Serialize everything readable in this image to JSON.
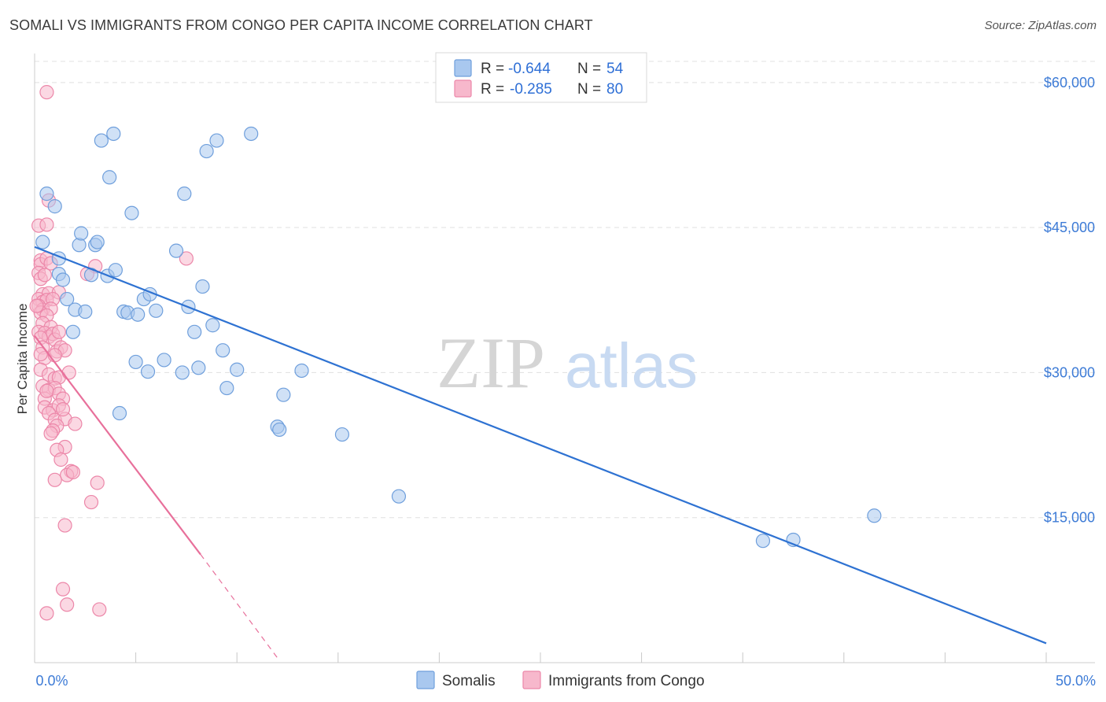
{
  "title": "SOMALI VS IMMIGRANTS FROM CONGO PER CAPITA INCOME CORRELATION CHART",
  "source": "Source: ZipAtlas.com",
  "watermark": {
    "zip": "ZIP",
    "atlas": "atlas"
  },
  "colors": {
    "blue_fill": "#a9c8ef",
    "blue_stroke": "#6f9fdc",
    "blue_line": "#2e72d2",
    "pink_fill": "#f7b8cc",
    "pink_stroke": "#ec87a9",
    "pink_line": "#e8709b",
    "grid": "#e0e0e0",
    "tick_label": "#3d7bd6"
  },
  "legend": {
    "rows": [
      {
        "r_label": "R =",
        "r_value": "-0.644",
        "n_label": "N =",
        "n_value": "54",
        "series": "blue"
      },
      {
        "r_label": "R =",
        "r_value": "-0.285",
        "n_label": "N =",
        "n_value": "80",
        "series": "pink"
      }
    ]
  },
  "bottom_legend": [
    {
      "label": "Somalis",
      "series": "blue"
    },
    {
      "label": "Immigrants from Congo",
      "series": "pink"
    }
  ],
  "chart_data": {
    "type": "scatter",
    "title": "SOMALI VS IMMIGRANTS FROM CONGO PER CAPITA INCOME CORRELATION CHART",
    "xlabel": "",
    "ylabel": "Per Capita Income",
    "xlim": [
      0,
      50
    ],
    "ylim": [
      0,
      63000
    ],
    "x_tick_labels": [
      {
        "value": 0,
        "label": "0.0%"
      },
      {
        "value": 50,
        "label": "50.0%"
      }
    ],
    "y_ticks": [
      {
        "value": 15000,
        "label": "$15,000"
      },
      {
        "value": 30000,
        "label": "$30,000"
      },
      {
        "value": 45000,
        "label": "$45,000"
      },
      {
        "value": 60000,
        "label": "$60,000"
      }
    ],
    "series": [
      {
        "name": "Somalis",
        "color": "blue",
        "r": -0.644,
        "n": 54,
        "trend": {
          "x0": 0,
          "y0": 43000,
          "x1": 50,
          "y1": 2000
        },
        "points": [
          [
            0.4,
            43500
          ],
          [
            0.6,
            48500
          ],
          [
            1.0,
            47200
          ],
          [
            1.2,
            41800
          ],
          [
            1.2,
            40200
          ],
          [
            1.6,
            37600
          ],
          [
            1.9,
            34200
          ],
          [
            2.0,
            36500
          ],
          [
            2.2,
            43200
          ],
          [
            2.3,
            44400
          ],
          [
            2.5,
            36300
          ],
          [
            2.8,
            40100
          ],
          [
            3.0,
            43200
          ],
          [
            3.1,
            43500
          ],
          [
            3.3,
            54000
          ],
          [
            3.6,
            40000
          ],
          [
            3.7,
            50200
          ],
          [
            3.9,
            54700
          ],
          [
            4.0,
            40600
          ],
          [
            4.2,
            25800
          ],
          [
            4.4,
            36300
          ],
          [
            4.6,
            36200
          ],
          [
            4.8,
            46500
          ],
          [
            5.0,
            31100
          ],
          [
            5.1,
            36000
          ],
          [
            5.4,
            37600
          ],
          [
            5.6,
            30100
          ],
          [
            5.7,
            38100
          ],
          [
            6.0,
            36400
          ],
          [
            6.4,
            31300
          ],
          [
            7.0,
            42600
          ],
          [
            7.3,
            30000
          ],
          [
            7.4,
            48500
          ],
          [
            7.6,
            36800
          ],
          [
            7.9,
            34200
          ],
          [
            8.1,
            30500
          ],
          [
            8.3,
            38900
          ],
          [
            8.5,
            52900
          ],
          [
            8.8,
            34900
          ],
          [
            9.0,
            54000
          ],
          [
            9.3,
            32300
          ],
          [
            9.5,
            28400
          ],
          [
            10.0,
            30300
          ],
          [
            10.7,
            54700
          ],
          [
            12.0,
            24400
          ],
          [
            12.1,
            24100
          ],
          [
            12.3,
            27700
          ],
          [
            13.2,
            30200
          ],
          [
            15.2,
            23600
          ],
          [
            18.0,
            17200
          ],
          [
            36.0,
            12600
          ],
          [
            37.5,
            12700
          ],
          [
            41.5,
            15200
          ],
          [
            1.4,
            39600
          ]
        ]
      },
      {
        "name": "Immigrants from Congo",
        "color": "pink",
        "r": -0.285,
        "n": 80,
        "trend": {
          "x0": 0,
          "y0": 33800,
          "x1": 8.2,
          "y1": 11200,
          "dash_x1": 12.0,
          "dash_y1": 500
        },
        "points": [
          [
            0.6,
            59000
          ],
          [
            0.7,
            47800
          ],
          [
            0.2,
            45200
          ],
          [
            0.6,
            45300
          ],
          [
            0.3,
            41600
          ],
          [
            0.3,
            41200
          ],
          [
            0.6,
            41800
          ],
          [
            0.8,
            41300
          ],
          [
            0.2,
            40300
          ],
          [
            0.3,
            39700
          ],
          [
            0.5,
            40100
          ],
          [
            0.4,
            38100
          ],
          [
            0.7,
            38200
          ],
          [
            1.2,
            38300
          ],
          [
            0.2,
            37600
          ],
          [
            0.4,
            37300
          ],
          [
            0.6,
            37500
          ],
          [
            0.9,
            37600
          ],
          [
            0.2,
            36900
          ],
          [
            0.4,
            36500
          ],
          [
            0.8,
            36600
          ],
          [
            0.3,
            36200
          ],
          [
            0.6,
            35900
          ],
          [
            0.4,
            35100
          ],
          [
            0.8,
            34700
          ],
          [
            0.2,
            34200
          ],
          [
            0.5,
            34100
          ],
          [
            0.7,
            33700
          ],
          [
            0.9,
            34000
          ],
          [
            0.3,
            33600
          ],
          [
            1.0,
            33400
          ],
          [
            0.4,
            32600
          ],
          [
            1.1,
            32200
          ],
          [
            1.3,
            32600
          ],
          [
            1.5,
            32300
          ],
          [
            0.5,
            31500
          ],
          [
            1.0,
            31800
          ],
          [
            0.3,
            30300
          ],
          [
            0.7,
            29800
          ],
          [
            1.0,
            29400
          ],
          [
            1.2,
            29500
          ],
          [
            0.4,
            28600
          ],
          [
            0.7,
            28200
          ],
          [
            1.0,
            28400
          ],
          [
            1.2,
            27800
          ],
          [
            0.5,
            27300
          ],
          [
            1.4,
            27300
          ],
          [
            0.5,
            26400
          ],
          [
            0.9,
            26100
          ],
          [
            1.2,
            26600
          ],
          [
            0.7,
            25800
          ],
          [
            1.0,
            25100
          ],
          [
            1.5,
            25200
          ],
          [
            1.1,
            24500
          ],
          [
            0.9,
            24000
          ],
          [
            1.5,
            22300
          ],
          [
            1.1,
            22000
          ],
          [
            1.3,
            21000
          ],
          [
            1.8,
            19800
          ],
          [
            1.6,
            19400
          ],
          [
            1.0,
            18900
          ],
          [
            3.1,
            18600
          ],
          [
            1.9,
            19700
          ],
          [
            2.8,
            16600
          ],
          [
            1.5,
            14200
          ],
          [
            1.4,
            7600
          ],
          [
            1.6,
            6000
          ],
          [
            3.2,
            5500
          ],
          [
            0.6,
            5100
          ],
          [
            7.5,
            41800
          ],
          [
            3.0,
            41000
          ],
          [
            2.6,
            40200
          ],
          [
            0.1,
            36900
          ],
          [
            0.3,
            31900
          ],
          [
            1.2,
            34200
          ],
          [
            0.6,
            28100
          ],
          [
            1.4,
            26200
          ],
          [
            2.0,
            24700
          ],
          [
            1.7,
            30000
          ],
          [
            0.8,
            23700
          ]
        ]
      }
    ]
  }
}
